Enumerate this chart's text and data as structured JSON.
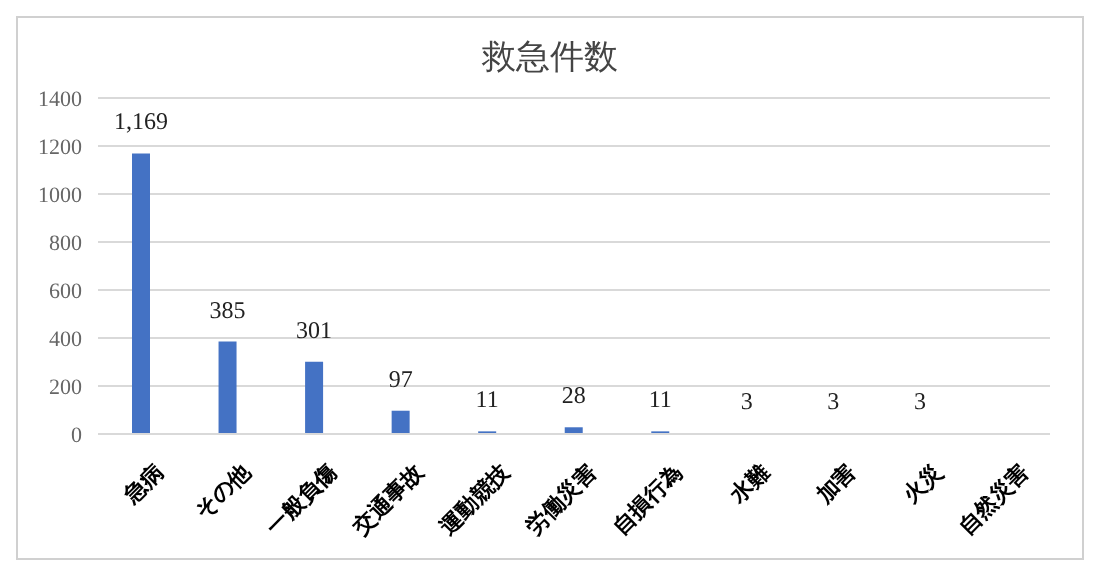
{
  "chart_data": {
    "type": "bar",
    "title": "救急件数",
    "categories": [
      "急病",
      "その他",
      "一般負傷",
      "交通事故",
      "運動競技",
      "労働災害",
      "自損行為",
      "水難",
      "加害",
      "火災",
      "自然災害"
    ],
    "values": [
      1169,
      385,
      301,
      97,
      11,
      28,
      11,
      3,
      3,
      3,
      0
    ],
    "value_labels": [
      "1,169",
      "385",
      "301",
      "97",
      "11",
      "28",
      "11",
      "3",
      "3",
      "3",
      null
    ],
    "color": "#4472c4",
    "ylim": [
      0,
      1400
    ],
    "yticks": [
      0,
      200,
      400,
      600,
      800,
      1000,
      1200,
      1400
    ],
    "grid": "y"
  }
}
